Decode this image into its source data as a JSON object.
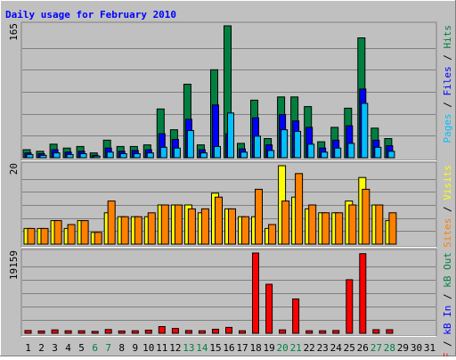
{
  "chart_data": {
    "type": "bar",
    "title": "Daily usage for February 2010",
    "categories": [
      "1",
      "2",
      "3",
      "4",
      "5",
      "6",
      "7",
      "8",
      "9",
      "10",
      "11",
      "12",
      "13",
      "14",
      "15",
      "16",
      "17",
      "18",
      "19",
      "20",
      "21",
      "22",
      "23",
      "24",
      "25",
      "26",
      "27",
      "28",
      "29",
      "30",
      "31"
    ],
    "weekend_days": [
      "6",
      "7",
      "13",
      "14",
      "20",
      "21",
      "27",
      "28"
    ],
    "panels": [
      {
        "name": "hits_files_pages",
        "ymax_label": "165",
        "ymax": 165,
        "right_label": [
          {
            "text": "Pages",
            "color": "#00c0ff"
          },
          {
            "text": " / ",
            "color": "#000000"
          },
          {
            "text": "Files",
            "color": "#0000ff"
          },
          {
            "text": " / ",
            "color": "#000000"
          },
          {
            "text": "Hits",
            "color": "#008040"
          }
        ],
        "series": [
          {
            "name": "Hits",
            "color": "#008040",
            "values": [
              10,
              8,
              17,
              12,
              14,
              6,
              22,
              14,
              14,
              16,
              61,
              35,
              92,
              16,
              110,
              165,
              18,
              72,
              24,
              76,
              76,
              64,
              20,
              38,
              62,
              150,
              37,
              24,
              0,
              0,
              0
            ]
          },
          {
            "name": "Files",
            "color": "#0000ff",
            "values": [
              6,
              5,
              10,
              7,
              8,
              3,
              12,
              8,
              9,
              10,
              30,
              23,
              48,
              10,
              66,
              30,
              11,
              50,
              16,
              54,
              46,
              38,
              12,
              22,
              40,
              86,
              22,
              15,
              0,
              0,
              0
            ]
          },
          {
            "name": "Pages",
            "color": "#00c0ff",
            "values": [
              4,
              3,
              6,
              4,
              5,
              2,
              7,
              5,
              5,
              6,
              13,
              12,
              34,
              6,
              14,
              56,
              7,
              27,
              9,
              35,
              33,
              17,
              7,
              12,
              18,
              68,
              13,
              8,
              0,
              0,
              0
            ]
          }
        ]
      },
      {
        "name": "visits_sites",
        "ymax_label": "20",
        "ymax": 20,
        "right_label": [
          {
            "text": "Sites",
            "color": "#ff8000"
          },
          {
            "text": " / ",
            "color": "#000000"
          },
          {
            "text": "Visits",
            "color": "#ffff00"
          }
        ],
        "series": [
          {
            "name": "Visits",
            "color": "#ffff00",
            "values": [
              4,
              4,
              6,
              4,
              6,
              3,
              8,
              7,
              7,
              7,
              10,
              10,
              10,
              8,
              13,
              9,
              7,
              7,
              4,
              20,
              12,
              9,
              8,
              8,
              11,
              17,
              10,
              6,
              0,
              0,
              0
            ]
          },
          {
            "name": "Sites",
            "color": "#ff8000",
            "values": [
              4,
              4,
              6,
              5,
              6,
              3,
              11,
              7,
              7,
              8,
              10,
              10,
              9,
              9,
              12,
              9,
              7,
              14,
              5,
              11,
              18,
              10,
              8,
              8,
              10,
              14,
              10,
              8,
              0,
              0,
              0
            ]
          }
        ]
      },
      {
        "name": "kbytes",
        "ymax_label": "19159",
        "ymax": 19159,
        "right_label": [
          {
            "text": "kB F",
            "color": "#ff0000"
          },
          {
            "text": " / ",
            "color": "#000000"
          },
          {
            "text": "kB In",
            "color": "#0000ff"
          },
          {
            "text": " / ",
            "color": "#000000"
          },
          {
            "text": "kB Out",
            "color": "#008040"
          }
        ],
        "series": [
          {
            "name": "kB F",
            "color": "#ff0000",
            "values": [
              650,
              550,
              800,
              600,
              600,
              450,
              900,
              550,
              600,
              750,
              1600,
              1150,
              650,
              600,
              950,
              1400,
              600,
              19159,
              11700,
              800,
              8200,
              600,
              600,
              650,
              12800,
              19000,
              850,
              850,
              0,
              0,
              0
            ]
          }
        ]
      }
    ]
  },
  "colors": {
    "background": "#c0c0c0",
    "frame": "#ffffff",
    "title": "#0000ff",
    "weekend_label": "#008040",
    "weekday_label": "#000000",
    "gridline": "#808080"
  }
}
